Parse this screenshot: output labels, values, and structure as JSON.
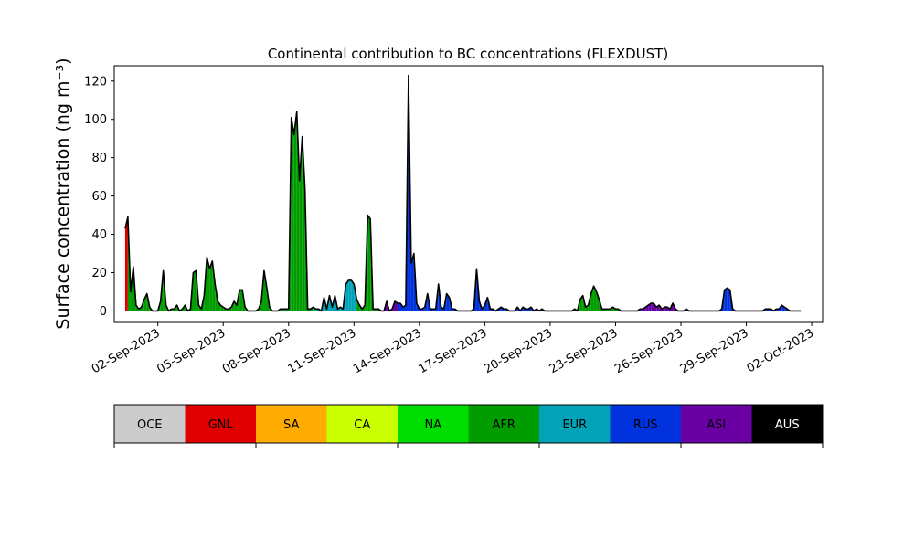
{
  "chart_data": {
    "type": "area",
    "title": "Continental contribution to BC concentrations (FLEXDUST)",
    "ylabel": "Surface concentration (ng m⁻³)",
    "xlabel": "",
    "ylim": [
      -6,
      128
    ],
    "xlim": [
      "2023-08-31T00:00",
      "2023-10-02T12:00"
    ],
    "yticks": [
      0,
      20,
      40,
      60,
      80,
      100,
      120
    ],
    "xticks": [
      {
        "date": "2023-09-02",
        "label": "02-Sep-2023"
      },
      {
        "date": "2023-09-05",
        "label": "05-Sep-2023"
      },
      {
        "date": "2023-09-08",
        "label": "08-Sep-2023"
      },
      {
        "date": "2023-09-11",
        "label": "11-Sep-2023"
      },
      {
        "date": "2023-09-14",
        "label": "14-Sep-2023"
      },
      {
        "date": "2023-09-17",
        "label": "17-Sep-2023"
      },
      {
        "date": "2023-09-20",
        "label": "20-Sep-2023"
      },
      {
        "date": "2023-09-23",
        "label": "23-Sep-2023"
      },
      {
        "date": "2023-09-26",
        "label": "26-Sep-2023"
      },
      {
        "date": "2023-09-29",
        "label": "29-Sep-2023"
      },
      {
        "date": "2023-10-02",
        "label": "02-Oct-2023"
      }
    ],
    "grid": false,
    "x": [
      "2023-08-31T12:00",
      "2023-08-31T15:00",
      "2023-08-31T18:00",
      "2023-08-31T21:00",
      "2023-09-01T00:00",
      "2023-09-01T03:00",
      "2023-09-01T06:00",
      "2023-09-01T09:00",
      "2023-09-01T12:00",
      "2023-09-01T15:00",
      "2023-09-01T18:00",
      "2023-09-01T21:00",
      "2023-09-02T00:00",
      "2023-09-02T03:00",
      "2023-09-02T06:00",
      "2023-09-02T09:00",
      "2023-09-02T12:00",
      "2023-09-02T15:00",
      "2023-09-02T18:00",
      "2023-09-02T21:00",
      "2023-09-03T00:00",
      "2023-09-03T03:00",
      "2023-09-03T06:00",
      "2023-09-03T09:00",
      "2023-09-03T12:00",
      "2023-09-03T15:00",
      "2023-09-03T18:00",
      "2023-09-03T21:00",
      "2023-09-04T00:00",
      "2023-09-04T03:00",
      "2023-09-04T06:00",
      "2023-09-04T09:00",
      "2023-09-04T12:00",
      "2023-09-04T15:00",
      "2023-09-04T18:00",
      "2023-09-04T21:00",
      "2023-09-05T00:00",
      "2023-09-05T03:00",
      "2023-09-05T06:00",
      "2023-09-05T09:00",
      "2023-09-05T12:00",
      "2023-09-05T15:00",
      "2023-09-05T18:00",
      "2023-09-05T21:00",
      "2023-09-06T00:00",
      "2023-09-06T03:00",
      "2023-09-06T06:00",
      "2023-09-06T09:00",
      "2023-09-06T12:00",
      "2023-09-06T15:00",
      "2023-09-06T18:00",
      "2023-09-06T21:00",
      "2023-09-07T00:00",
      "2023-09-07T03:00",
      "2023-09-07T06:00",
      "2023-09-07T09:00",
      "2023-09-07T12:00",
      "2023-09-07T15:00",
      "2023-09-07T18:00",
      "2023-09-07T21:00",
      "2023-09-08T00:00",
      "2023-09-08T03:00",
      "2023-09-08T06:00",
      "2023-09-08T09:00",
      "2023-09-08T12:00",
      "2023-09-08T15:00",
      "2023-09-08T18:00",
      "2023-09-08T21:00",
      "2023-09-09T00:00",
      "2023-09-09T03:00",
      "2023-09-09T06:00",
      "2023-09-09T09:00",
      "2023-09-09T12:00",
      "2023-09-09T15:00",
      "2023-09-09T18:00",
      "2023-09-09T21:00",
      "2023-09-10T00:00",
      "2023-09-10T03:00",
      "2023-09-10T06:00",
      "2023-09-10T09:00",
      "2023-09-10T12:00",
      "2023-09-10T15:00",
      "2023-09-10T18:00",
      "2023-09-10T21:00",
      "2023-09-11T00:00",
      "2023-09-11T03:00",
      "2023-09-11T06:00",
      "2023-09-11T09:00",
      "2023-09-11T12:00",
      "2023-09-11T15:00",
      "2023-09-11T18:00",
      "2023-09-11T21:00",
      "2023-09-12T00:00",
      "2023-09-12T03:00",
      "2023-09-12T06:00",
      "2023-09-12T09:00",
      "2023-09-12T12:00",
      "2023-09-12T15:00",
      "2023-09-12T18:00",
      "2023-09-12T21:00",
      "2023-09-13T00:00",
      "2023-09-13T03:00",
      "2023-09-13T06:00",
      "2023-09-13T09:00",
      "2023-09-13T12:00",
      "2023-09-13T15:00",
      "2023-09-13T18:00",
      "2023-09-13T21:00",
      "2023-09-14T00:00",
      "2023-09-14T03:00",
      "2023-09-14T06:00",
      "2023-09-14T09:00",
      "2023-09-14T12:00",
      "2023-09-14T15:00",
      "2023-09-14T18:00",
      "2023-09-14T21:00",
      "2023-09-15T00:00",
      "2023-09-15T03:00",
      "2023-09-15T06:00",
      "2023-09-15T09:00",
      "2023-09-15T12:00",
      "2023-09-15T15:00",
      "2023-09-15T18:00",
      "2023-09-15T21:00",
      "2023-09-16T00:00",
      "2023-09-16T03:00",
      "2023-09-16T06:00",
      "2023-09-16T09:00",
      "2023-09-16T12:00",
      "2023-09-16T15:00",
      "2023-09-16T18:00",
      "2023-09-16T21:00",
      "2023-09-17T00:00",
      "2023-09-17T03:00",
      "2023-09-17T06:00",
      "2023-09-17T09:00",
      "2023-09-17T12:00",
      "2023-09-17T15:00",
      "2023-09-17T18:00",
      "2023-09-17T21:00",
      "2023-09-18T00:00",
      "2023-09-18T03:00",
      "2023-09-18T06:00",
      "2023-09-18T09:00",
      "2023-09-18T12:00",
      "2023-09-18T15:00",
      "2023-09-18T18:00",
      "2023-09-18T21:00",
      "2023-09-19T00:00",
      "2023-09-19T03:00",
      "2023-09-19T06:00",
      "2023-09-19T09:00",
      "2023-09-19T12:00",
      "2023-09-19T15:00",
      "2023-09-19T18:00",
      "2023-09-19T21:00",
      "2023-09-20T00:00",
      "2023-09-20T03:00",
      "2023-09-20T06:00",
      "2023-09-20T09:00",
      "2023-09-20T12:00",
      "2023-09-20T15:00",
      "2023-09-20T18:00",
      "2023-09-20T21:00",
      "2023-09-21T00:00",
      "2023-09-21T03:00",
      "2023-09-21T06:00",
      "2023-09-21T09:00",
      "2023-09-21T12:00",
      "2023-09-21T15:00",
      "2023-09-21T18:00",
      "2023-09-21T21:00",
      "2023-09-22T00:00",
      "2023-09-22T03:00",
      "2023-09-22T06:00",
      "2023-09-22T09:00",
      "2023-09-22T12:00",
      "2023-09-22T15:00",
      "2023-09-22T18:00",
      "2023-09-22T21:00",
      "2023-09-23T00:00",
      "2023-09-23T03:00",
      "2023-09-23T06:00",
      "2023-09-23T09:00",
      "2023-09-23T12:00",
      "2023-09-23T15:00",
      "2023-09-23T18:00",
      "2023-09-23T21:00",
      "2023-09-24T00:00",
      "2023-09-24T03:00",
      "2023-09-24T06:00",
      "2023-09-24T09:00",
      "2023-09-24T12:00",
      "2023-09-24T15:00",
      "2023-09-24T18:00",
      "2023-09-24T21:00",
      "2023-09-25T00:00",
      "2023-09-25T03:00",
      "2023-09-25T06:00",
      "2023-09-25T09:00",
      "2023-09-25T12:00",
      "2023-09-25T15:00",
      "2023-09-25T18:00",
      "2023-09-25T21:00",
      "2023-09-26T00:00",
      "2023-09-26T03:00",
      "2023-09-26T06:00",
      "2023-09-26T09:00",
      "2023-09-26T12:00",
      "2023-09-26T15:00",
      "2023-09-26T18:00",
      "2023-09-26T21:00",
      "2023-09-27T00:00",
      "2023-09-27T03:00",
      "2023-09-27T06:00",
      "2023-09-27T09:00",
      "2023-09-27T12:00",
      "2023-09-27T15:00",
      "2023-09-27T18:00",
      "2023-09-27T21:00",
      "2023-09-28T00:00",
      "2023-09-28T03:00",
      "2023-09-28T06:00",
      "2023-09-28T09:00",
      "2023-09-28T12:00",
      "2023-09-28T15:00",
      "2023-09-28T18:00",
      "2023-09-28T21:00",
      "2023-09-29T00:00",
      "2023-09-29T03:00",
      "2023-09-29T06:00",
      "2023-09-29T09:00",
      "2023-09-29T12:00",
      "2023-09-29T15:00",
      "2023-09-29T18:00",
      "2023-09-29T21:00",
      "2023-09-30T00:00",
      "2023-09-30T03:00",
      "2023-09-30T06:00",
      "2023-09-30T09:00",
      "2023-09-30T12:00",
      "2023-09-30T15:00",
      "2023-09-30T18:00",
      "2023-09-30T21:00",
      "2023-10-01T00:00",
      "2023-10-01T03:00",
      "2023-10-01T06:00",
      "2023-10-01T09:00",
      "2023-10-01T12:00"
    ],
    "total": [
      43,
      49,
      10,
      23,
      3,
      1,
      2,
      6,
      9,
      2,
      0,
      0,
      0,
      5,
      21,
      3,
      0,
      1,
      1,
      3,
      0,
      1,
      3,
      0,
      1,
      20,
      21,
      3,
      1,
      8,
      28,
      22,
      26,
      14,
      5,
      3,
      2,
      1,
      1,
      2,
      5,
      3,
      11,
      11,
      2,
      0,
      0,
      0,
      0,
      1,
      5,
      21,
      12,
      2,
      0,
      0,
      0,
      1,
      1,
      1,
      1,
      101,
      92,
      104,
      68,
      91,
      64,
      1,
      1,
      2,
      1,
      1,
      0,
      7,
      1,
      8,
      2,
      8,
      1,
      2,
      1,
      14,
      16,
      16,
      14,
      6,
      3,
      1,
      3,
      50,
      48,
      1,
      1,
      1,
      0,
      0,
      5,
      0,
      1,
      5,
      4,
      4,
      2,
      3,
      123,
      25,
      30,
      4,
      1,
      1,
      2,
      9,
      1,
      1,
      1,
      14,
      2,
      1,
      9,
      7,
      1,
      1,
      0,
      0,
      0,
      0,
      0,
      0,
      1,
      22,
      5,
      1,
      3,
      7,
      1,
      1,
      0,
      1,
      2,
      1,
      1,
      0,
      0,
      0,
      2,
      0,
      2,
      1,
      1,
      2,
      0,
      1,
      0,
      1,
      0,
      0,
      0,
      0,
      0,
      0,
      0,
      0,
      0,
      0,
      0,
      1,
      0,
      6,
      8,
      2,
      3,
      9,
      13,
      10,
      6,
      1,
      1,
      1,
      1,
      2,
      1,
      1,
      0,
      0,
      0,
      0,
      0,
      0,
      0,
      1,
      1,
      2,
      3,
      4,
      4,
      2,
      3,
      1,
      2,
      2,
      1,
      4,
      1,
      0,
      0,
      0,
      1,
      0,
      0,
      0,
      0,
      0,
      0,
      0,
      0,
      0,
      0,
      0,
      0,
      1,
      11,
      12,
      11,
      1,
      0,
      0,
      0,
      0,
      0,
      0,
      0,
      0,
      0,
      0,
      0,
      1,
      1,
      1,
      0,
      1,
      1,
      3,
      2,
      1,
      0,
      0,
      0,
      0,
      0,
      0,
      0,
      0,
      0,
      0,
      0,
      0,
      0,
      0,
      0,
      0,
      0,
      0,
      0,
      0
    ],
    "dominant": [
      "GNL",
      "AFR",
      "AFR",
      "AFR",
      "AFR",
      "AFR",
      "AFR",
      "AFR",
      "AFR",
      "AFR",
      "AFR",
      "AFR",
      "AFR",
      "AFR",
      "AFR",
      "AFR",
      "AFR",
      "AFR",
      "AFR",
      "AFR",
      "AFR",
      "AFR",
      "AFR",
      "AFR",
      "AFR",
      "AFR",
      "AFR",
      "AFR",
      "AFR",
      "AFR",
      "AFR",
      "AFR",
      "AFR",
      "AFR",
      "AFR",
      "AFR",
      "AFR",
      "AFR",
      "AFR",
      "AFR",
      "AFR",
      "AFR",
      "AFR",
      "AFR",
      "AFR",
      "AFR",
      "AFR",
      "AFR",
      "AFR",
      "AFR",
      "AFR",
      "AFR",
      "AFR",
      "AFR",
      "AFR",
      "AFR",
      "AFR",
      "AFR",
      "AFR",
      "AFR",
      "AFR",
      "AFR",
      "AFR",
      "AFR",
      "AFR",
      "AFR",
      "AFR",
      "AFR",
      "AFR",
      "EUR",
      "EUR",
      "EUR",
      "EUR",
      "EUR",
      "EUR",
      "EUR",
      "EUR",
      "EUR",
      "EUR",
      "EUR",
      "EUR",
      "EUR",
      "EUR",
      "EUR",
      "EUR",
      "AFR",
      "AFR",
      "AFR",
      "AFR",
      "AFR",
      "AFR",
      "AFR",
      "AFR",
      "ASI",
      "ASI",
      "ASI",
      "ASI",
      "ASI",
      "ASI",
      "ASI",
      "RUS",
      "RUS",
      "RUS",
      "RUS",
      "RUS",
      "RUS",
      "RUS",
      "RUS",
      "RUS",
      "RUS",
      "RUS",
      "RUS",
      "RUS",
      "RUS",
      "RUS",
      "RUS",
      "RUS",
      "RUS",
      "RUS",
      "RUS",
      "RUS",
      "RUS",
      "RUS",
      "RUS",
      "RUS",
      "RUS",
      "RUS",
      "RUS",
      "RUS",
      "RUS",
      "RUS",
      "RUS",
      "RUS",
      "RUS",
      "RUS",
      "RUS",
      "RUS",
      "RUS",
      "RUS",
      "RUS",
      "RUS",
      "RUS",
      "RUS",
      "RUS",
      "RUS",
      "RUS",
      "RUS",
      "RUS",
      "RUS",
      "RUS",
      "RUS",
      "RUS",
      "RUS",
      "RUS",
      "RUS",
      "RUS",
      "RUS",
      "RUS",
      "RUS",
      "RUS",
      "RUS",
      "RUS",
      "RUS",
      "RUS",
      "AFR",
      "AFR",
      "AFR",
      "AFR",
      "AFR",
      "AFR",
      "AFR",
      "AFR",
      "AFR",
      "AFR",
      "AFR",
      "AFR",
      "AFR",
      "AFR",
      "AFR",
      "AFR",
      "AFR",
      "AFR",
      "AFR",
      "AFR",
      "AFR",
      "AFR",
      "AFR",
      "ASI",
      "ASI",
      "ASI",
      "ASI",
      "ASI",
      "ASI",
      "ASI",
      "ASI",
      "ASI",
      "ASI",
      "ASI",
      "ASI",
      "ASI",
      "ASI",
      "ASI",
      "ASI",
      "ASI",
      "ASI",
      "ASI",
      "ASI",
      "ASI",
      "ASI",
      "ASI",
      "ASI",
      "ASI",
      "ASI",
      "ASI",
      "ASI",
      "ASI",
      "RUS",
      "RUS",
      "RUS",
      "RUS",
      "RUS",
      "RUS",
      "RUS",
      "RUS",
      "RUS",
      "RUS",
      "RUS",
      "RUS",
      "RUS",
      "RUS",
      "RUS",
      "RUS",
      "RUS",
      "RUS",
      "RUS",
      "RUS",
      "RUS",
      "RUS",
      "RUS",
      "RUS",
      "RUS",
      "RUS",
      "RUS",
      "RUS",
      "RUS",
      "RUS",
      "RUS",
      "RUS",
      "RUS",
      "RUS",
      "RUS",
      "RUS",
      "RUS",
      "RUS",
      "RUS",
      "RUS",
      "RUS",
      "RUS",
      "RUS"
    ],
    "legend": {
      "placement": "bottom",
      "entries": [
        {
          "label": "OCE",
          "color": "#cccccc",
          "text_color": "#000000"
        },
        {
          "label": "GNL",
          "color": "#e00000",
          "text_color": "#000000"
        },
        {
          "label": "SA",
          "color": "#ffab00",
          "text_color": "#000000"
        },
        {
          "label": "CA",
          "color": "#c9ff00",
          "text_color": "#000000"
        },
        {
          "label": "NA",
          "color": "#00dd00",
          "text_color": "#000000"
        },
        {
          "label": "AFR",
          "color": "#009c00",
          "text_color": "#000000"
        },
        {
          "label": "EUR",
          "color": "#00a3b8",
          "text_color": "#000000"
        },
        {
          "label": "RUS",
          "color": "#0033dd",
          "text_color": "#000000"
        },
        {
          "label": "ASI",
          "color": "#6a00a3",
          "text_color": "#000000"
        },
        {
          "label": "AUS",
          "color": "#000000",
          "text_color": "#ffffff"
        }
      ]
    }
  }
}
